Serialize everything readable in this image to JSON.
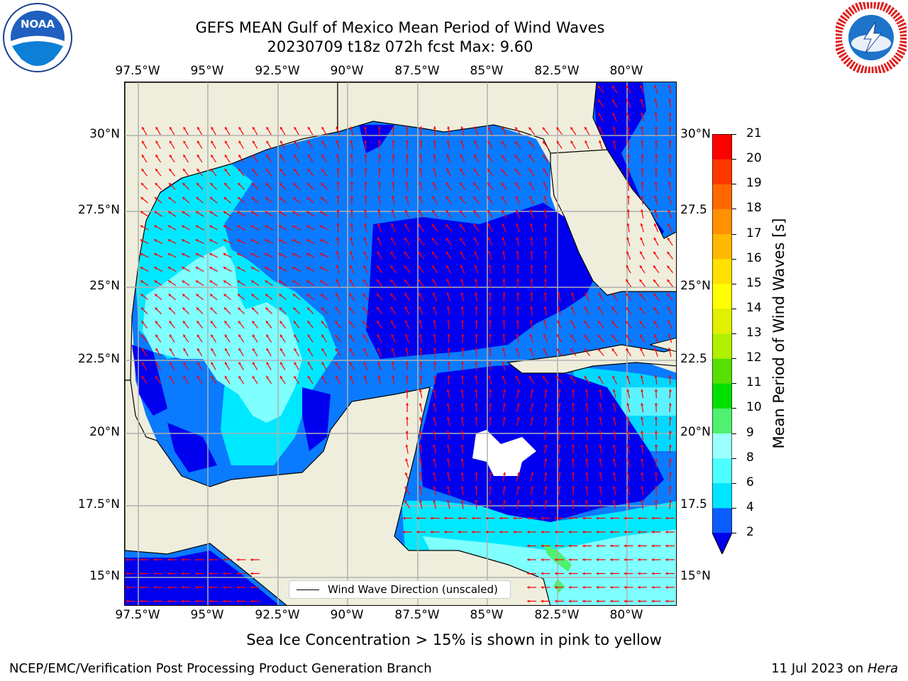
{
  "title": {
    "line1": "GEFS MEAN Gulf of Mexico Mean Period of Wind Waves",
    "line2": "20230709 t18z 072h fcst   Max: 9.60"
  },
  "logos": {
    "left": "NOAA",
    "right": "NATIONAL WEATHER SERVICE"
  },
  "map": {
    "lon_labels": [
      "97.5°W",
      "95°W",
      "92.5°W",
      "90°W",
      "87.5°W",
      "85°W",
      "82.5°W",
      "80°W"
    ],
    "lat_labels_left": [
      "30°N",
      "27.5°N",
      "25°N",
      "22.5°N",
      "20°N",
      "17.5°N",
      "15°N"
    ],
    "lat_labels_right": [
      "30°N",
      "27.5",
      "25°N",
      "22.5",
      "20°N",
      "17.5",
      "15°N"
    ],
    "legend_label": "Wind Wave Direction (unscaled)",
    "arrow_color": "#ff0000",
    "land_color": "#efeedc"
  },
  "colorbar": {
    "title": "Mean Period of Wind Waves [s]",
    "tick_labels": [
      "2",
      "4",
      "6",
      "8",
      "9",
      "10",
      "11",
      "12",
      "13",
      "14",
      "15",
      "16",
      "17",
      "18",
      "19",
      "20",
      "21"
    ],
    "colors": [
      "#0a5cff",
      "#00e5ff",
      "#4dffff",
      "#9bffff",
      "#50f070",
      "#00e000",
      "#58e000",
      "#b0f000",
      "#e0f000",
      "#ffff00",
      "#ffe000",
      "#ffb800",
      "#ff9000",
      "#ff6800",
      "#ff3800",
      "#ff0000"
    ],
    "extend_color": "#0000ee"
  },
  "footnote": "Sea Ice Concentration > 15% is shown in pink to yellow",
  "footer": {
    "left": "NCEP/EMC/Verification Post Processing Product Generation Branch",
    "right_prefix": "11 Jul 2023 on ",
    "right_host": "Hera"
  }
}
